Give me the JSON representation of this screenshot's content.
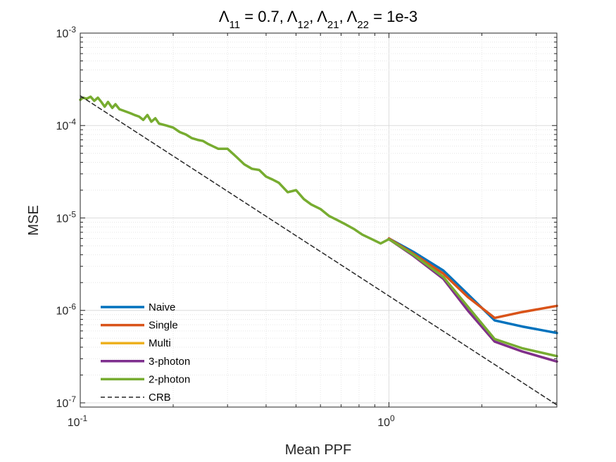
{
  "chart_data": {
    "type": "line",
    "title": "Λ11 = 0.7, Λ12, Λ21, Λ22 = 1e-3",
    "title_parts": [
      {
        "text": "Λ",
        "sub": "11"
      },
      {
        "text": " = 0.7, Λ",
        "sub": "12"
      },
      {
        "text": ", Λ",
        "sub": "21"
      },
      {
        "text": ", Λ",
        "sub": "22"
      },
      {
        "text": " = 1e-3",
        "sub": ""
      }
    ],
    "xlabel": "Mean PPF",
    "ylabel": "MSE",
    "xscale": "log",
    "yscale": "log",
    "xlim": [
      0.1,
      3.5
    ],
    "ylim": [
      9e-08,
      0.001
    ],
    "grid": true,
    "legend_position": "bottom-left",
    "x_ticks": [
      {
        "value": 0.1,
        "base": "10",
        "exp": "-1"
      },
      {
        "value": 1,
        "base": "10",
        "exp": "0"
      }
    ],
    "y_ticks": [
      {
        "value": 1e-07,
        "base": "10",
        "exp": "-7"
      },
      {
        "value": 1e-06,
        "base": "10",
        "exp": "-6"
      },
      {
        "value": 1e-05,
        "base": "10",
        "exp": "-5"
      },
      {
        "value": 0.0001,
        "base": "10",
        "exp": "-4"
      },
      {
        "value": 0.001,
        "base": "10",
        "exp": "-3"
      }
    ],
    "colors": {
      "naive": "#0072BD",
      "single": "#D95319",
      "multi": "#EDB120",
      "three_photon": "#7E2F8E",
      "two_photon": "#77AC30",
      "crb": "#262626"
    },
    "series": [
      {
        "name": "Naive",
        "key": "naive",
        "style": "solid",
        "x": [
          1.0,
          1.2,
          1.5,
          1.8,
          2.2,
          2.7,
          3.5
        ],
        "y": [
          6e-06,
          4.3e-06,
          2.7e-06,
          1.5e-06,
          7.8e-07,
          6.7e-07,
          5.7e-07
        ]
      },
      {
        "name": "Single",
        "key": "single",
        "style": "solid",
        "x": [
          1.0,
          1.2,
          1.5,
          1.8,
          2.2,
          2.7,
          3.5
        ],
        "y": [
          6e-06,
          4.1e-06,
          2.5e-06,
          1.4e-06,
          8.3e-07,
          9.6e-07,
          1.12e-06
        ]
      },
      {
        "name": "Multi",
        "key": "multi",
        "style": "solid",
        "x": [
          1.0,
          1.2,
          1.5,
          1.8,
          2.2,
          2.7,
          3.5
        ],
        "y": [
          5.9e-06,
          3.9e-06,
          2.2e-06,
          1e-06,
          4.6e-07,
          3.6e-07,
          2.8e-07
        ]
      },
      {
        "name": "3-photon",
        "key": "three_photon",
        "style": "solid",
        "x": [
          1.0,
          1.2,
          1.5,
          1.8,
          2.2,
          2.7,
          3.5
        ],
        "y": [
          5.9e-06,
          3.9e-06,
          2.2e-06,
          1e-06,
          4.6e-07,
          3.6e-07,
          2.8e-07
        ]
      },
      {
        "name": "2-photon",
        "key": "two_photon",
        "style": "solid",
        "x": [
          0.1,
          0.102,
          0.105,
          0.108,
          0.111,
          0.114,
          0.117,
          0.12,
          0.123,
          0.127,
          0.13,
          0.134,
          0.138,
          0.142,
          0.146,
          0.15,
          0.155,
          0.16,
          0.165,
          0.17,
          0.175,
          0.18,
          0.19,
          0.2,
          0.21,
          0.22,
          0.23,
          0.24,
          0.25,
          0.26,
          0.28,
          0.3,
          0.32,
          0.34,
          0.36,
          0.38,
          0.4,
          0.42,
          0.44,
          0.47,
          0.5,
          0.53,
          0.56,
          0.6,
          0.64,
          0.68,
          0.72,
          0.77,
          0.82,
          0.88,
          0.94,
          1.0,
          1.2,
          1.5,
          1.8,
          2.2,
          2.7,
          3.5
        ],
        "y": [
          0.00019,
          0.0002,
          0.000195,
          0.000205,
          0.000185,
          0.0002,
          0.00018,
          0.00016,
          0.00018,
          0.000155,
          0.00017,
          0.00015,
          0.000145,
          0.00014,
          0.000135,
          0.00013,
          0.000125,
          0.000115,
          0.00013,
          0.00011,
          0.00012,
          0.000105,
          0.0001,
          9.5e-05,
          8.5e-05,
          8e-05,
          7.3e-05,
          7e-05,
          6.8e-05,
          6.3e-05,
          5.6e-05,
          5.6e-05,
          4.6e-05,
          3.8e-05,
          3.4e-05,
          3.3e-05,
          2.8e-05,
          2.6e-05,
          2.4e-05,
          1.9e-05,
          2e-05,
          1.6e-05,
          1.4e-05,
          1.25e-05,
          1.05e-05,
          9.5e-06,
          8.6e-06,
          7.6e-06,
          6.6e-06,
          5.9e-06,
          5.3e-06,
          5.9e-06,
          4e-06,
          2.3e-06,
          1.1e-06,
          4.9e-07,
          3.9e-07,
          3.2e-07
        ]
      },
      {
        "name": "CRB",
        "key": "crb",
        "style": "dashed",
        "x": [
          0.1,
          3.5
        ],
        "y": [
          0.00021,
          9.5e-08
        ]
      }
    ]
  }
}
